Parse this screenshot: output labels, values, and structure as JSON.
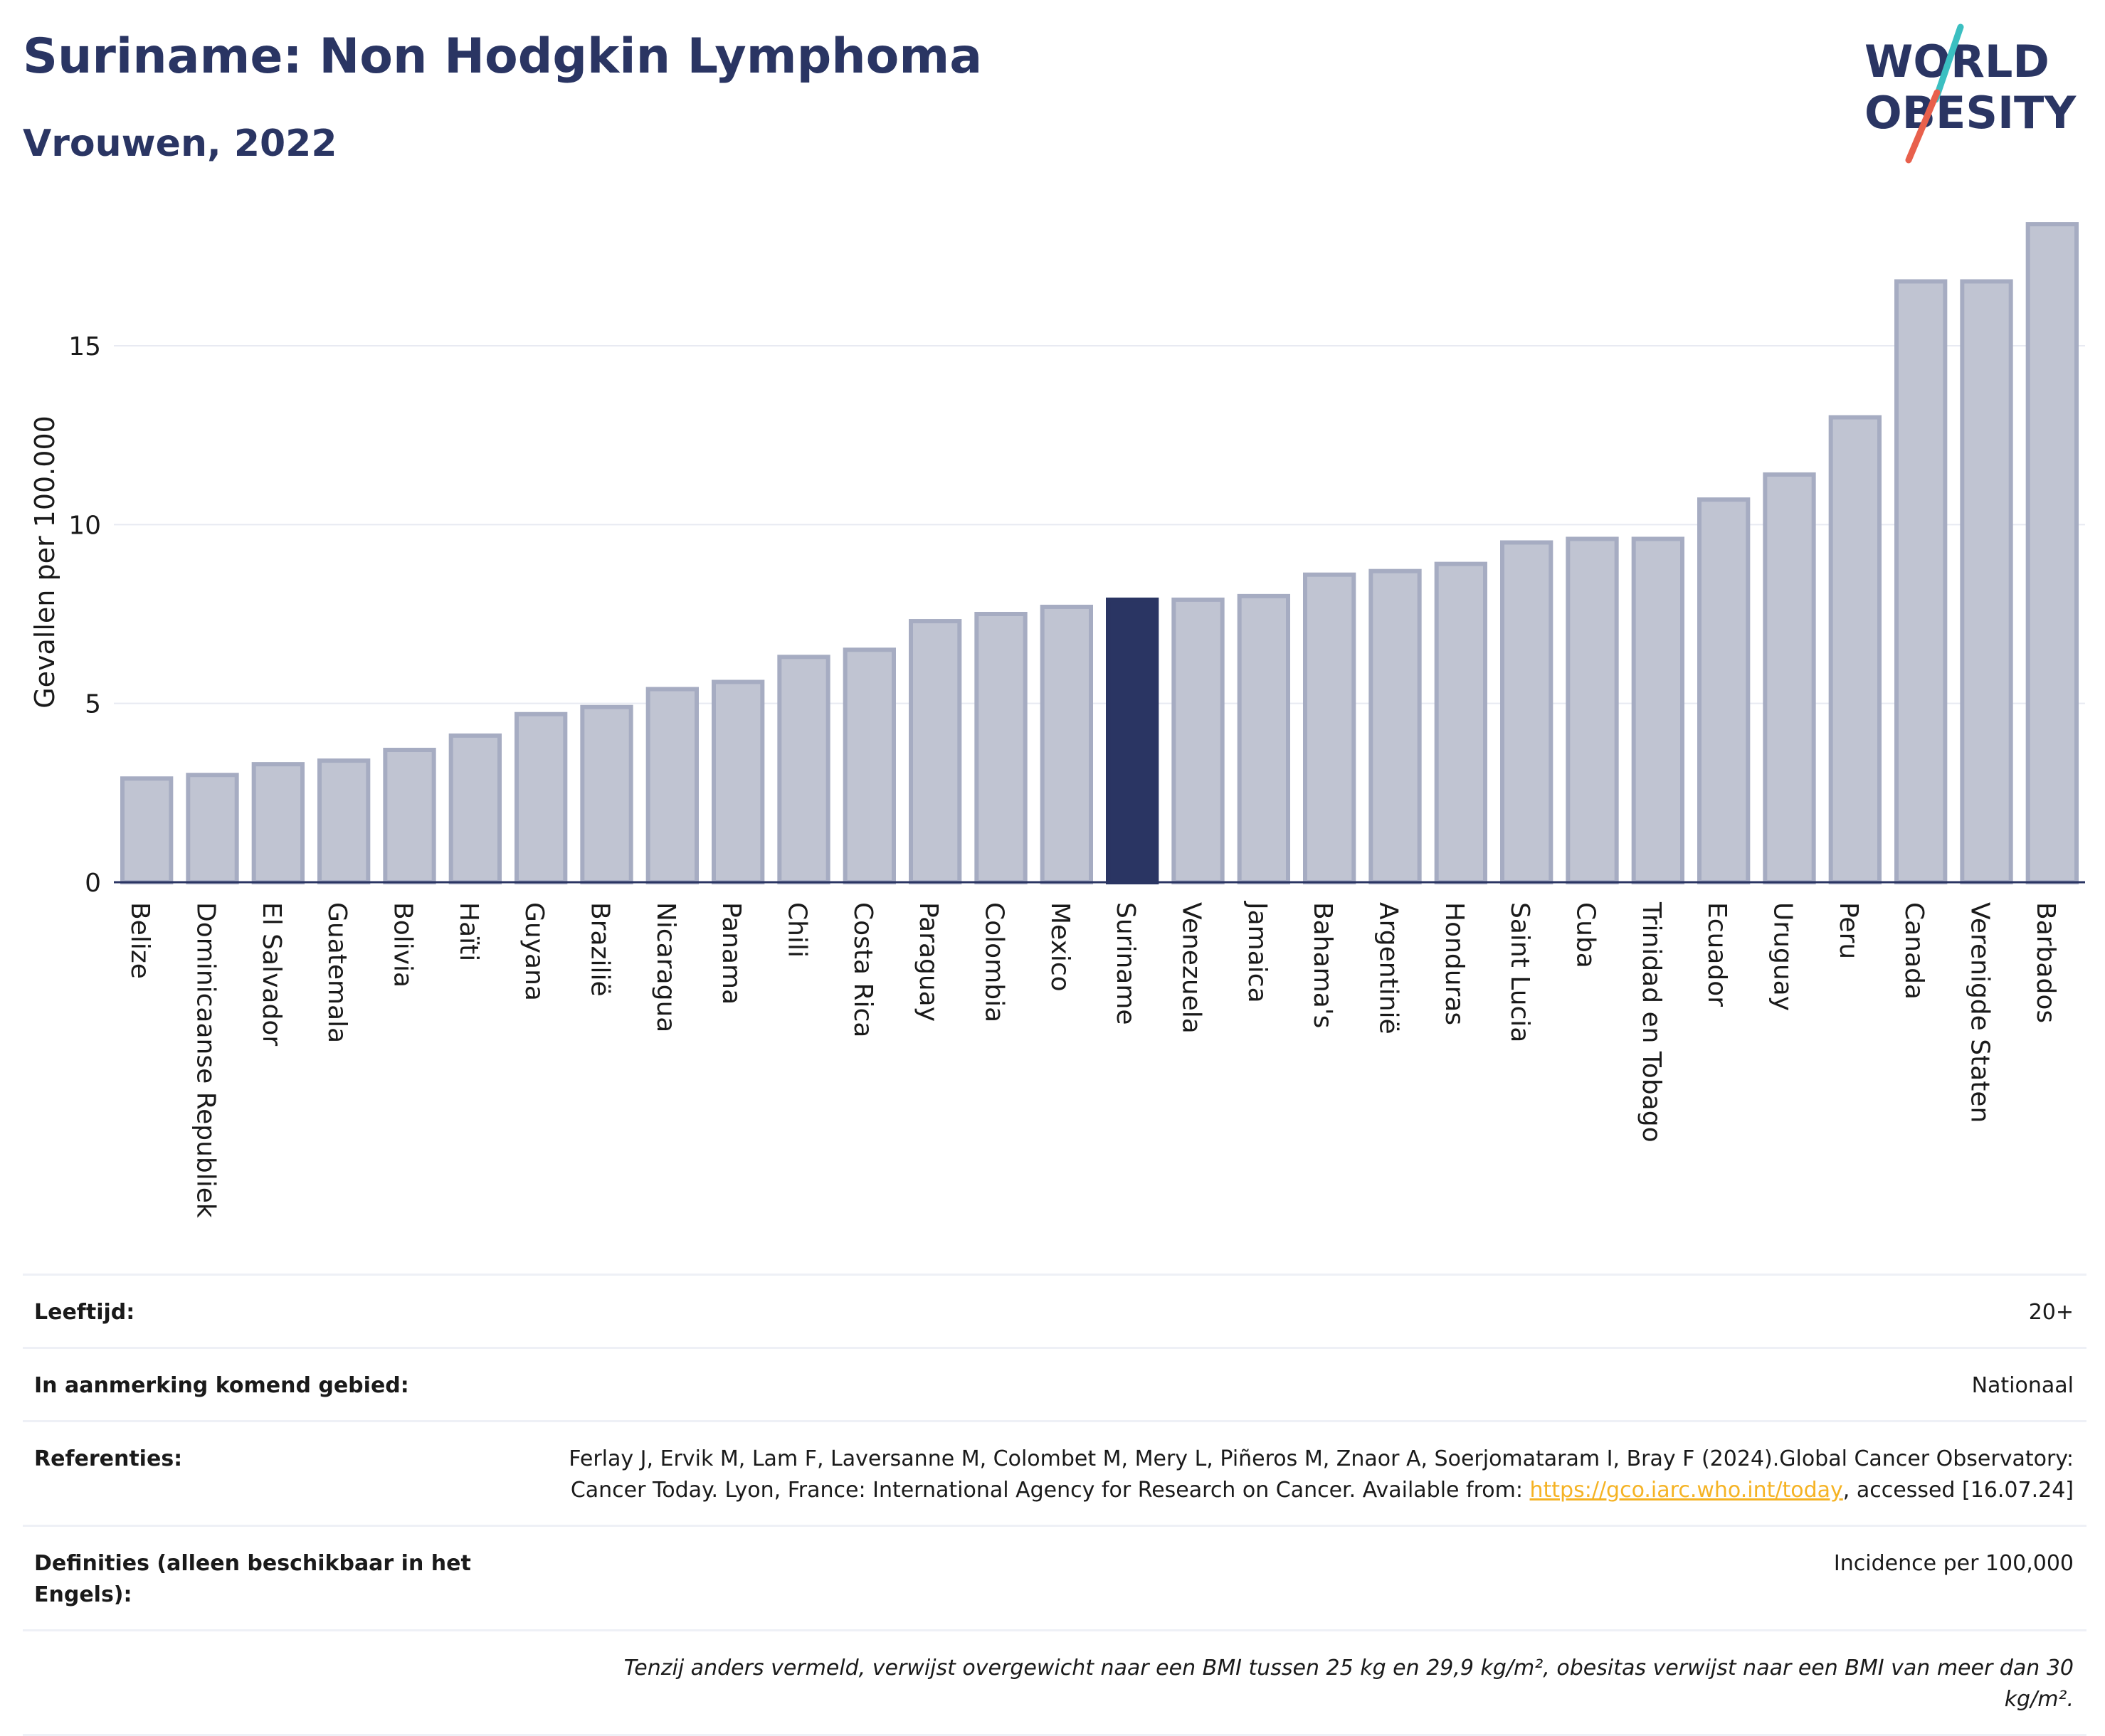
{
  "header": {
    "title": "Suriname: Non Hodgkin Lymphoma",
    "subtitle": "Vrouwen, 2022"
  },
  "logo": {
    "line1": "WORLD",
    "line2": "OBESITY",
    "colors": {
      "text": "#2a3563",
      "slash_top": "#3bbfc1",
      "slash_bottom": "#e8604c"
    }
  },
  "chart_data": {
    "type": "bar",
    "title": "",
    "xlabel": "",
    "ylabel": "Gevallen per 100.000",
    "ylim": [
      0,
      18.7
    ],
    "yticks": [
      0,
      5,
      10,
      15
    ],
    "grid": true,
    "highlight": "Suriname",
    "colors": {
      "bar": "#c0c4d2",
      "bar_edge": "#a6acc2",
      "highlight": "#2a3563",
      "grid": "#e8eaf2",
      "axis": "#2a3563"
    },
    "categories": [
      "Belize",
      "Dominicaanse Republiek",
      "El Salvador",
      "Guatemala",
      "Bolivia",
      "Haïti",
      "Guyana",
      "Brazilië",
      "Nicaragua",
      "Panama",
      "Chili",
      "Costa Rica",
      "Paraguay",
      "Colombia",
      "Mexico",
      "Suriname",
      "Venezuela",
      "Jamaica",
      "Bahama's",
      "Argentinië",
      "Honduras",
      "Saint Lucia",
      "Cuba",
      "Trinidad en Tobago",
      "Ecuador",
      "Uruguay",
      "Peru",
      "Canada",
      "Verenigde Staten",
      "Barbados"
    ],
    "values": [
      2.9,
      3.0,
      3.3,
      3.4,
      3.7,
      4.1,
      4.7,
      4.9,
      5.4,
      5.6,
      6.3,
      6.5,
      7.3,
      7.5,
      7.7,
      7.9,
      7.9,
      8.0,
      8.6,
      8.7,
      8.9,
      9.5,
      9.6,
      9.6,
      10.7,
      11.4,
      13.0,
      16.8,
      16.8,
      18.4
    ]
  },
  "info": {
    "age_label": "Leeftijd:",
    "age_value": "20+",
    "area_label": "In aanmerking komend gebied:",
    "area_value": "Nationaal",
    "ref_label": "Referenties:",
    "ref_text_1": "Ferlay J, Ervik M, Lam F, Laversanne M, Colombet M, Mery L, Piñeros M, Znaor A, Soerjomataram I, Bray F (2024).Global Cancer Observatory: Cancer Today. Lyon, France: International Agency for Research on Cancer. Available from: ",
    "ref_link": "https://gco.iarc.who.int/today",
    "ref_text_2": ", accessed [16.07.24]",
    "def_label": "Definities (alleen beschikbaar in het Engels):",
    "def_value": "Incidence per 100,000",
    "note": "Tenzij anders vermeld, verwijst overgewicht naar een BMI tussen 25 kg en 29,9 kg/m², obesitas verwijst naar een BMI van meer dan 30 kg/m²."
  }
}
